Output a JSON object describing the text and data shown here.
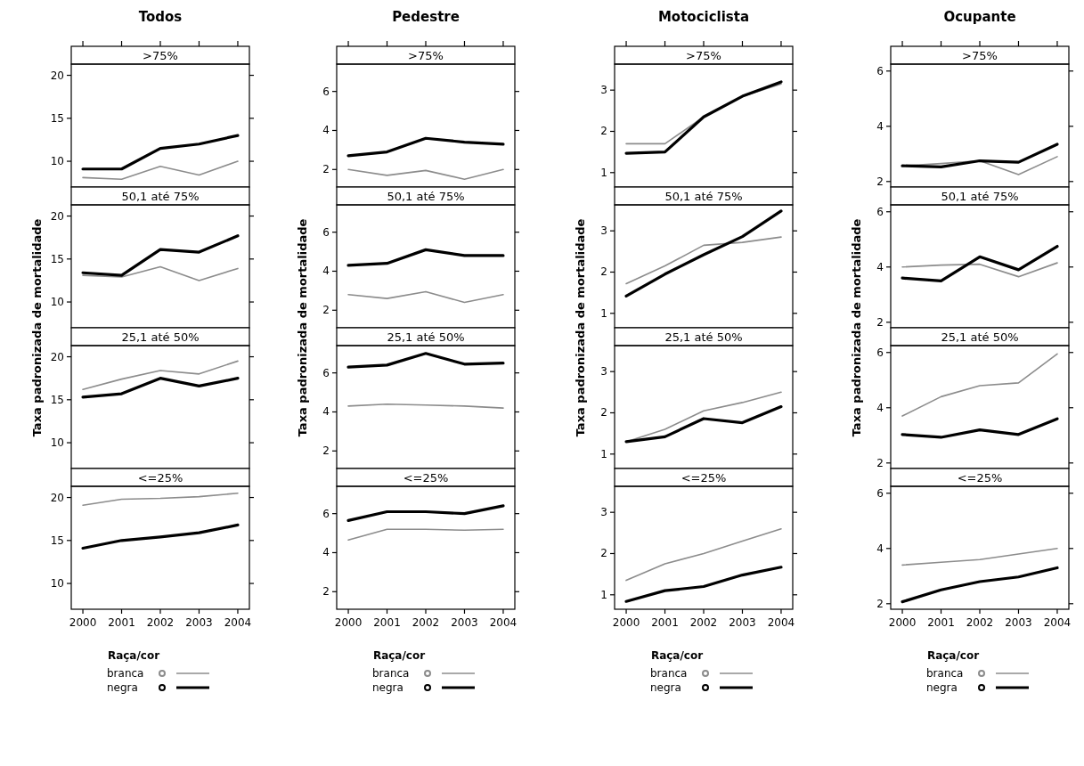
{
  "chart_data": [
    {
      "type": "line",
      "title": "Todos",
      "subtitle": ">75%",
      "x": [
        2000,
        2001,
        2002,
        2003,
        2004
      ],
      "xlim": [
        1999.7,
        2004.3
      ],
      "xticks": [
        {
          "value": 2000,
          "label": null
        },
        {
          "value": 2001,
          "label": null
        },
        {
          "value": 2002,
          "label": null
        },
        {
          "value": 2003,
          "label": null
        },
        {
          "value": 2004,
          "label": null
        }
      ],
      "ylim": [
        7,
        21.3
      ],
      "yticks": [
        10,
        15,
        20
      ],
      "tick_labels": "y",
      "series": [
        {
          "color": "#8c8c8c",
          "values": [
            8.1,
            7.9,
            9.4,
            8.4,
            10.0
          ]
        },
        {
          "color": "#000000",
          "values": [
            9.1,
            9.1,
            11.5,
            12.0,
            13.0
          ]
        }
      ]
    },
    {
      "type": "line",
      "title": "Pedestre",
      "subtitle": ">75%",
      "x": [
        2000,
        2001,
        2002,
        2003,
        2004
      ],
      "xlim": [
        1999.7,
        2004.3
      ],
      "xticks": [
        {
          "value": 2000,
          "label": null
        },
        {
          "value": 2001,
          "label": null
        },
        {
          "value": 2002,
          "label": null
        },
        {
          "value": 2003,
          "label": null
        },
        {
          "value": 2004,
          "label": null
        }
      ],
      "ylim": [
        1.1,
        7.4
      ],
      "yticks": [
        2,
        4,
        6
      ],
      "tick_labels": "y",
      "series": [
        {
          "color": "#8c8c8c",
          "values": [
            2.0,
            1.7,
            1.95,
            1.5,
            2.0
          ]
        },
        {
          "color": "#000000",
          "values": [
            2.7,
            2.9,
            3.6,
            3.4,
            3.3
          ]
        }
      ]
    },
    {
      "type": "line",
      "title": "Motociclista",
      "subtitle": ">75%",
      "x": [
        2000,
        2001,
        2002,
        2003,
        2004
      ],
      "xlim": [
        1999.7,
        2004.3
      ],
      "xticks": [
        {
          "value": 2000,
          "label": null
        },
        {
          "value": 2001,
          "label": null
        },
        {
          "value": 2002,
          "label": null
        },
        {
          "value": 2003,
          "label": null
        },
        {
          "value": 2004,
          "label": null
        }
      ],
      "ylim": [
        0.65,
        3.63
      ],
      "yticks": [
        1,
        2,
        3
      ],
      "tick_labels": "y",
      "series": [
        {
          "color": "#8c8c8c",
          "values": [
            1.7,
            1.7,
            2.35,
            2.85,
            3.15
          ]
        },
        {
          "color": "#000000",
          "values": [
            1.47,
            1.5,
            2.35,
            2.85,
            3.2
          ]
        }
      ]
    },
    {
      "type": "line",
      "title": "Ocupante",
      "subtitle": ">75%",
      "x": [
        2000,
        2001,
        2002,
        2003,
        2004
      ],
      "xlim": [
        1999.7,
        2004.3
      ],
      "xticks": [
        {
          "value": 2000,
          "label": null
        },
        {
          "value": 2001,
          "label": null
        },
        {
          "value": 2002,
          "label": null
        },
        {
          "value": 2003,
          "label": null
        },
        {
          "value": 2004,
          "label": null
        }
      ],
      "ylim": [
        1.8,
        6.25
      ],
      "yticks": [
        2,
        4,
        6
      ],
      "tick_labels": "y",
      "series": [
        {
          "color": "#8c8c8c",
          "values": [
            2.57,
            2.65,
            2.75,
            2.25,
            2.9
          ]
        },
        {
          "color": "#000000",
          "values": [
            2.57,
            2.53,
            2.75,
            2.7,
            3.35
          ]
        }
      ]
    },
    {
      "type": "line",
      "subtitle": "50,1 até 75%",
      "ylabel": "Taxa padronizada de mortalidade",
      "x": [
        2000,
        2001,
        2002,
        2003,
        2004
      ],
      "xlim": [
        1999.7,
        2004.3
      ],
      "ylim": [
        7,
        21.3
      ],
      "yticks": [
        10,
        15,
        20
      ],
      "tick_labels": "y",
      "series": [
        {
          "color": "#8c8c8c",
          "values": [
            13.1,
            12.9,
            14.1,
            12.5,
            13.9
          ]
        },
        {
          "color": "#000000",
          "values": [
            13.4,
            13.1,
            16.1,
            15.8,
            17.7
          ]
        }
      ]
    },
    {
      "type": "line",
      "subtitle": "50,1 até 75%",
      "ylabel": "Taxa padronizada de mortalidade",
      "x": [
        2000,
        2001,
        2002,
        2003,
        2004
      ],
      "xlim": [
        1999.7,
        2004.3
      ],
      "ylim": [
        1.1,
        7.4
      ],
      "yticks": [
        2,
        4,
        6
      ],
      "tick_labels": "y",
      "series": [
        {
          "color": "#8c8c8c",
          "values": [
            2.8,
            2.6,
            2.95,
            2.4,
            2.8
          ]
        },
        {
          "color": "#000000",
          "values": [
            4.3,
            4.4,
            5.1,
            4.8,
            4.8
          ]
        }
      ]
    },
    {
      "type": "line",
      "subtitle": "50,1 até 75%",
      "ylabel": "Taxa padronizada de mortalidade",
      "x": [
        2000,
        2001,
        2002,
        2003,
        2004
      ],
      "xlim": [
        1999.7,
        2004.3
      ],
      "ylim": [
        0.65,
        3.63
      ],
      "yticks": [
        1,
        2,
        3
      ],
      "tick_labels": "y",
      "series": [
        {
          "color": "#8c8c8c",
          "values": [
            1.72,
            2.15,
            2.65,
            2.72,
            2.85
          ]
        },
        {
          "color": "#000000",
          "values": [
            1.42,
            1.95,
            2.42,
            2.86,
            3.48
          ]
        }
      ]
    },
    {
      "type": "line",
      "subtitle": "50,1 até 75%",
      "ylabel": "Taxa padronizada de mortalidade",
      "x": [
        2000,
        2001,
        2002,
        2003,
        2004
      ],
      "xlim": [
        1999.7,
        2004.3
      ],
      "ylim": [
        1.8,
        6.25
      ],
      "yticks": [
        2,
        4,
        6
      ],
      "tick_labels": "y",
      "series": [
        {
          "color": "#8c8c8c",
          "values": [
            4.0,
            4.07,
            4.1,
            3.65,
            4.15
          ]
        },
        {
          "color": "#000000",
          "values": [
            3.6,
            3.5,
            4.37,
            3.9,
            4.75
          ]
        }
      ]
    },
    {
      "type": "line",
      "subtitle": "25,1 até 50%",
      "x": [
        2000,
        2001,
        2002,
        2003,
        2004
      ],
      "xlim": [
        1999.7,
        2004.3
      ],
      "ylim": [
        7,
        21.3
      ],
      "yticks": [
        10,
        15,
        20
      ],
      "tick_labels": "y",
      "series": [
        {
          "color": "#8c8c8c",
          "values": [
            16.2,
            17.4,
            18.4,
            18.0,
            19.5
          ]
        },
        {
          "color": "#000000",
          "values": [
            15.3,
            15.7,
            17.5,
            16.6,
            17.5
          ]
        }
      ]
    },
    {
      "type": "line",
      "subtitle": "25,1 até 50%",
      "x": [
        2000,
        2001,
        2002,
        2003,
        2004
      ],
      "xlim": [
        1999.7,
        2004.3
      ],
      "ylim": [
        1.1,
        7.4
      ],
      "yticks": [
        2,
        4,
        6
      ],
      "tick_labels": "y",
      "series": [
        {
          "color": "#8c8c8c",
          "values": [
            4.3,
            4.4,
            4.35,
            4.3,
            4.2
          ]
        },
        {
          "color": "#000000",
          "values": [
            6.3,
            6.4,
            7.0,
            6.45,
            6.5
          ]
        }
      ]
    },
    {
      "type": "line",
      "subtitle": "25,1 até 50%",
      "x": [
        2000,
        2001,
        2002,
        2003,
        2004
      ],
      "xlim": [
        1999.7,
        2004.3
      ],
      "ylim": [
        0.65,
        3.63
      ],
      "yticks": [
        1,
        2,
        3
      ],
      "tick_labels": "y",
      "series": [
        {
          "color": "#8c8c8c",
          "values": [
            1.3,
            1.6,
            2.05,
            2.25,
            2.5
          ]
        },
        {
          "color": "#000000",
          "values": [
            1.3,
            1.42,
            1.86,
            1.76,
            2.15
          ]
        }
      ]
    },
    {
      "type": "line",
      "subtitle": "25,1 até 50%",
      "x": [
        2000,
        2001,
        2002,
        2003,
        2004
      ],
      "xlim": [
        1999.7,
        2004.3
      ],
      "ylim": [
        1.8,
        6.25
      ],
      "yticks": [
        2,
        4,
        6
      ],
      "tick_labels": "y",
      "series": [
        {
          "color": "#8c8c8c",
          "values": [
            3.7,
            4.4,
            4.8,
            4.9,
            5.95
          ]
        },
        {
          "color": "#000000",
          "values": [
            3.03,
            2.93,
            3.2,
            3.03,
            3.6
          ]
        }
      ]
    },
    {
      "type": "line",
      "subtitle": "<=25%",
      "x": [
        2000,
        2001,
        2002,
        2003,
        2004
      ],
      "xlim": [
        1999.7,
        2004.3
      ],
      "xticks": [
        2000,
        2001,
        2002,
        2003,
        2004
      ],
      "ylim": [
        7,
        21.3
      ],
      "yticks": [
        10,
        15,
        20
      ],
      "legend": "bottom",
      "legend_title": "Raça/cor",
      "series": [
        {
          "name": "branca",
          "color": "#8c8c8c",
          "values": [
            19.1,
            19.8,
            19.9,
            20.1,
            20.5
          ]
        },
        {
          "name": "negra",
          "color": "#000000",
          "values": [
            14.1,
            15.0,
            15.4,
            15.9,
            16.8
          ]
        }
      ]
    },
    {
      "type": "line",
      "subtitle": "<=25%",
      "x": [
        2000,
        2001,
        2002,
        2003,
        2004
      ],
      "xlim": [
        1999.7,
        2004.3
      ],
      "xticks": [
        2000,
        2001,
        2002,
        2003,
        2004
      ],
      "ylim": [
        1.1,
        7.4
      ],
      "yticks": [
        2,
        4,
        6
      ],
      "legend": "bottom",
      "legend_title": "Raça/cor",
      "series": [
        {
          "name": "branca",
          "color": "#8c8c8c",
          "values": [
            4.65,
            5.2,
            5.2,
            5.15,
            5.2
          ]
        },
        {
          "name": "negra",
          "color": "#000000",
          "values": [
            5.65,
            6.1,
            6.1,
            6.0,
            6.4
          ]
        }
      ]
    },
    {
      "type": "line",
      "subtitle": "<=25%",
      "x": [
        2000,
        2001,
        2002,
        2003,
        2004
      ],
      "xlim": [
        1999.7,
        2004.3
      ],
      "xticks": [
        2000,
        2001,
        2002,
        2003,
        2004
      ],
      "ylim": [
        0.65,
        3.63
      ],
      "yticks": [
        1,
        2,
        3
      ],
      "legend": "bottom",
      "legend_title": "Raça/cor",
      "series": [
        {
          "name": "branca",
          "color": "#8c8c8c",
          "values": [
            1.35,
            1.75,
            2.0,
            2.3,
            2.6
          ]
        },
        {
          "name": "negra",
          "color": "#000000",
          "values": [
            0.84,
            1.1,
            1.2,
            1.48,
            1.67
          ]
        }
      ]
    },
    {
      "type": "line",
      "subtitle": "<=25%",
      "x": [
        2000,
        2001,
        2002,
        2003,
        2004
      ],
      "xlim": [
        1999.7,
        2004.3
      ],
      "xticks": [
        2000,
        2001,
        2002,
        2003,
        2004
      ],
      "ylim": [
        1.8,
        6.25
      ],
      "yticks": [
        2,
        4,
        6
      ],
      "legend": "bottom",
      "legend_title": "Raça/cor",
      "series": [
        {
          "name": "branca",
          "color": "#8c8c8c",
          "values": [
            3.4,
            3.5,
            3.6,
            3.8,
            4.0
          ]
        },
        {
          "name": "negra",
          "color": "#000000",
          "values": [
            2.07,
            2.5,
            2.8,
            2.97,
            3.3
          ]
        }
      ]
    }
  ]
}
